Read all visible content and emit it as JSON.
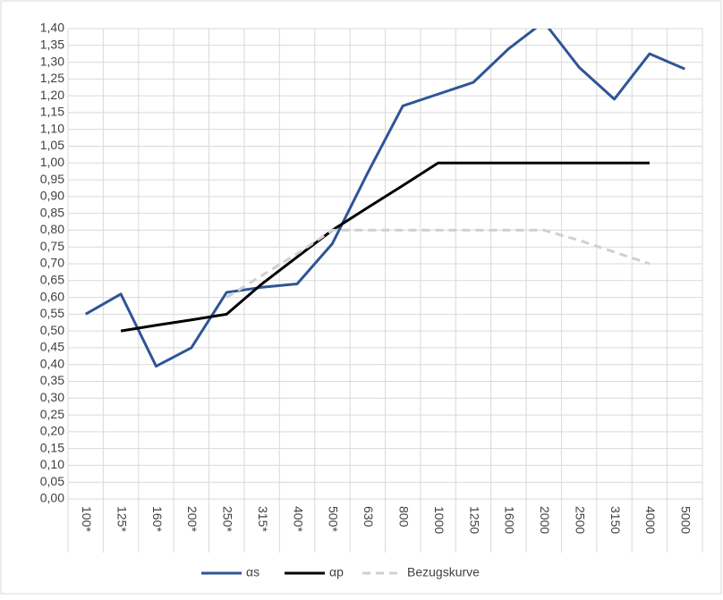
{
  "chart_data": {
    "type": "line",
    "categories": [
      "100*",
      "125*",
      "160*",
      "200*",
      "250*",
      "315*",
      "400*",
      "500*",
      "630",
      "800",
      "1000",
      "1250",
      "1600",
      "2000",
      "2500",
      "3150",
      "4000",
      "5000"
    ],
    "series": [
      {
        "name": "αs",
        "color": "#2f5597",
        "dash": false,
        "values": [
          0.55,
          0.61,
          0.395,
          0.45,
          0.615,
          0.63,
          0.64,
          0.76,
          0.97,
          1.17,
          1.205,
          1.24,
          1.34,
          1.42,
          1.285,
          1.19,
          1.325,
          1.28
        ]
      },
      {
        "name": "αp",
        "color": "#000000",
        "dash": false,
        "values": [
          null,
          0.5,
          0.517,
          0.533,
          0.55,
          0.64,
          0.72,
          0.8,
          0.867,
          0.933,
          1.0,
          1.0,
          1.0,
          1.0,
          1.0,
          1.0,
          1.0,
          null
        ]
      },
      {
        "name": "Bezugskurve",
        "color": "#d0d0d0",
        "dash": true,
        "values": [
          null,
          null,
          null,
          null,
          0.6,
          0.665,
          0.73,
          0.8,
          0.8,
          0.8,
          0.8,
          0.8,
          0.8,
          0.8,
          0.77,
          0.735,
          0.7,
          null
        ]
      }
    ],
    "ylim": [
      0,
      1.4
    ],
    "yticks": [
      {
        "value": 0,
        "label": "0,00"
      },
      {
        "value": 0.05,
        "label": "0,05"
      },
      {
        "value": 0.1,
        "label": "0,10"
      },
      {
        "value": 0.15,
        "label": "0,15"
      },
      {
        "value": 0.2,
        "label": "0,20"
      },
      {
        "value": 0.25,
        "label": "0,25"
      },
      {
        "value": 0.3,
        "label": "0,30"
      },
      {
        "value": 0.35,
        "label": "0,35"
      },
      {
        "value": 0.4,
        "label": "0,40"
      },
      {
        "value": 0.45,
        "label": "0,45"
      },
      {
        "value": 0.5,
        "label": "0,50"
      },
      {
        "value": 0.55,
        "label": "0,55"
      },
      {
        "value": 0.6,
        "label": "0,60"
      },
      {
        "value": 0.65,
        "label": "0,65"
      },
      {
        "value": 0.7,
        "label": "0,70"
      },
      {
        "value": 0.75,
        "label": "0,75"
      },
      {
        "value": 0.8,
        "label": "0,80"
      },
      {
        "value": 0.85,
        "label": "0,85"
      },
      {
        "value": 0.9,
        "label": "0,90"
      },
      {
        "value": 0.95,
        "label": "0,95"
      },
      {
        "value": 1.0,
        "label": "1,00"
      },
      {
        "value": 1.05,
        "label": "1,05"
      },
      {
        "value": 1.1,
        "label": "1,10"
      },
      {
        "value": 1.15,
        "label": "1,15"
      },
      {
        "value": 1.2,
        "label": "1,20"
      },
      {
        "value": 1.25,
        "label": "1,25"
      },
      {
        "value": 1.3,
        "label": "1,30"
      },
      {
        "value": 1.35,
        "label": "1,35"
      },
      {
        "value": 1.4,
        "label": "1,40"
      }
    ],
    "grid": true,
    "legend": "bottom"
  }
}
